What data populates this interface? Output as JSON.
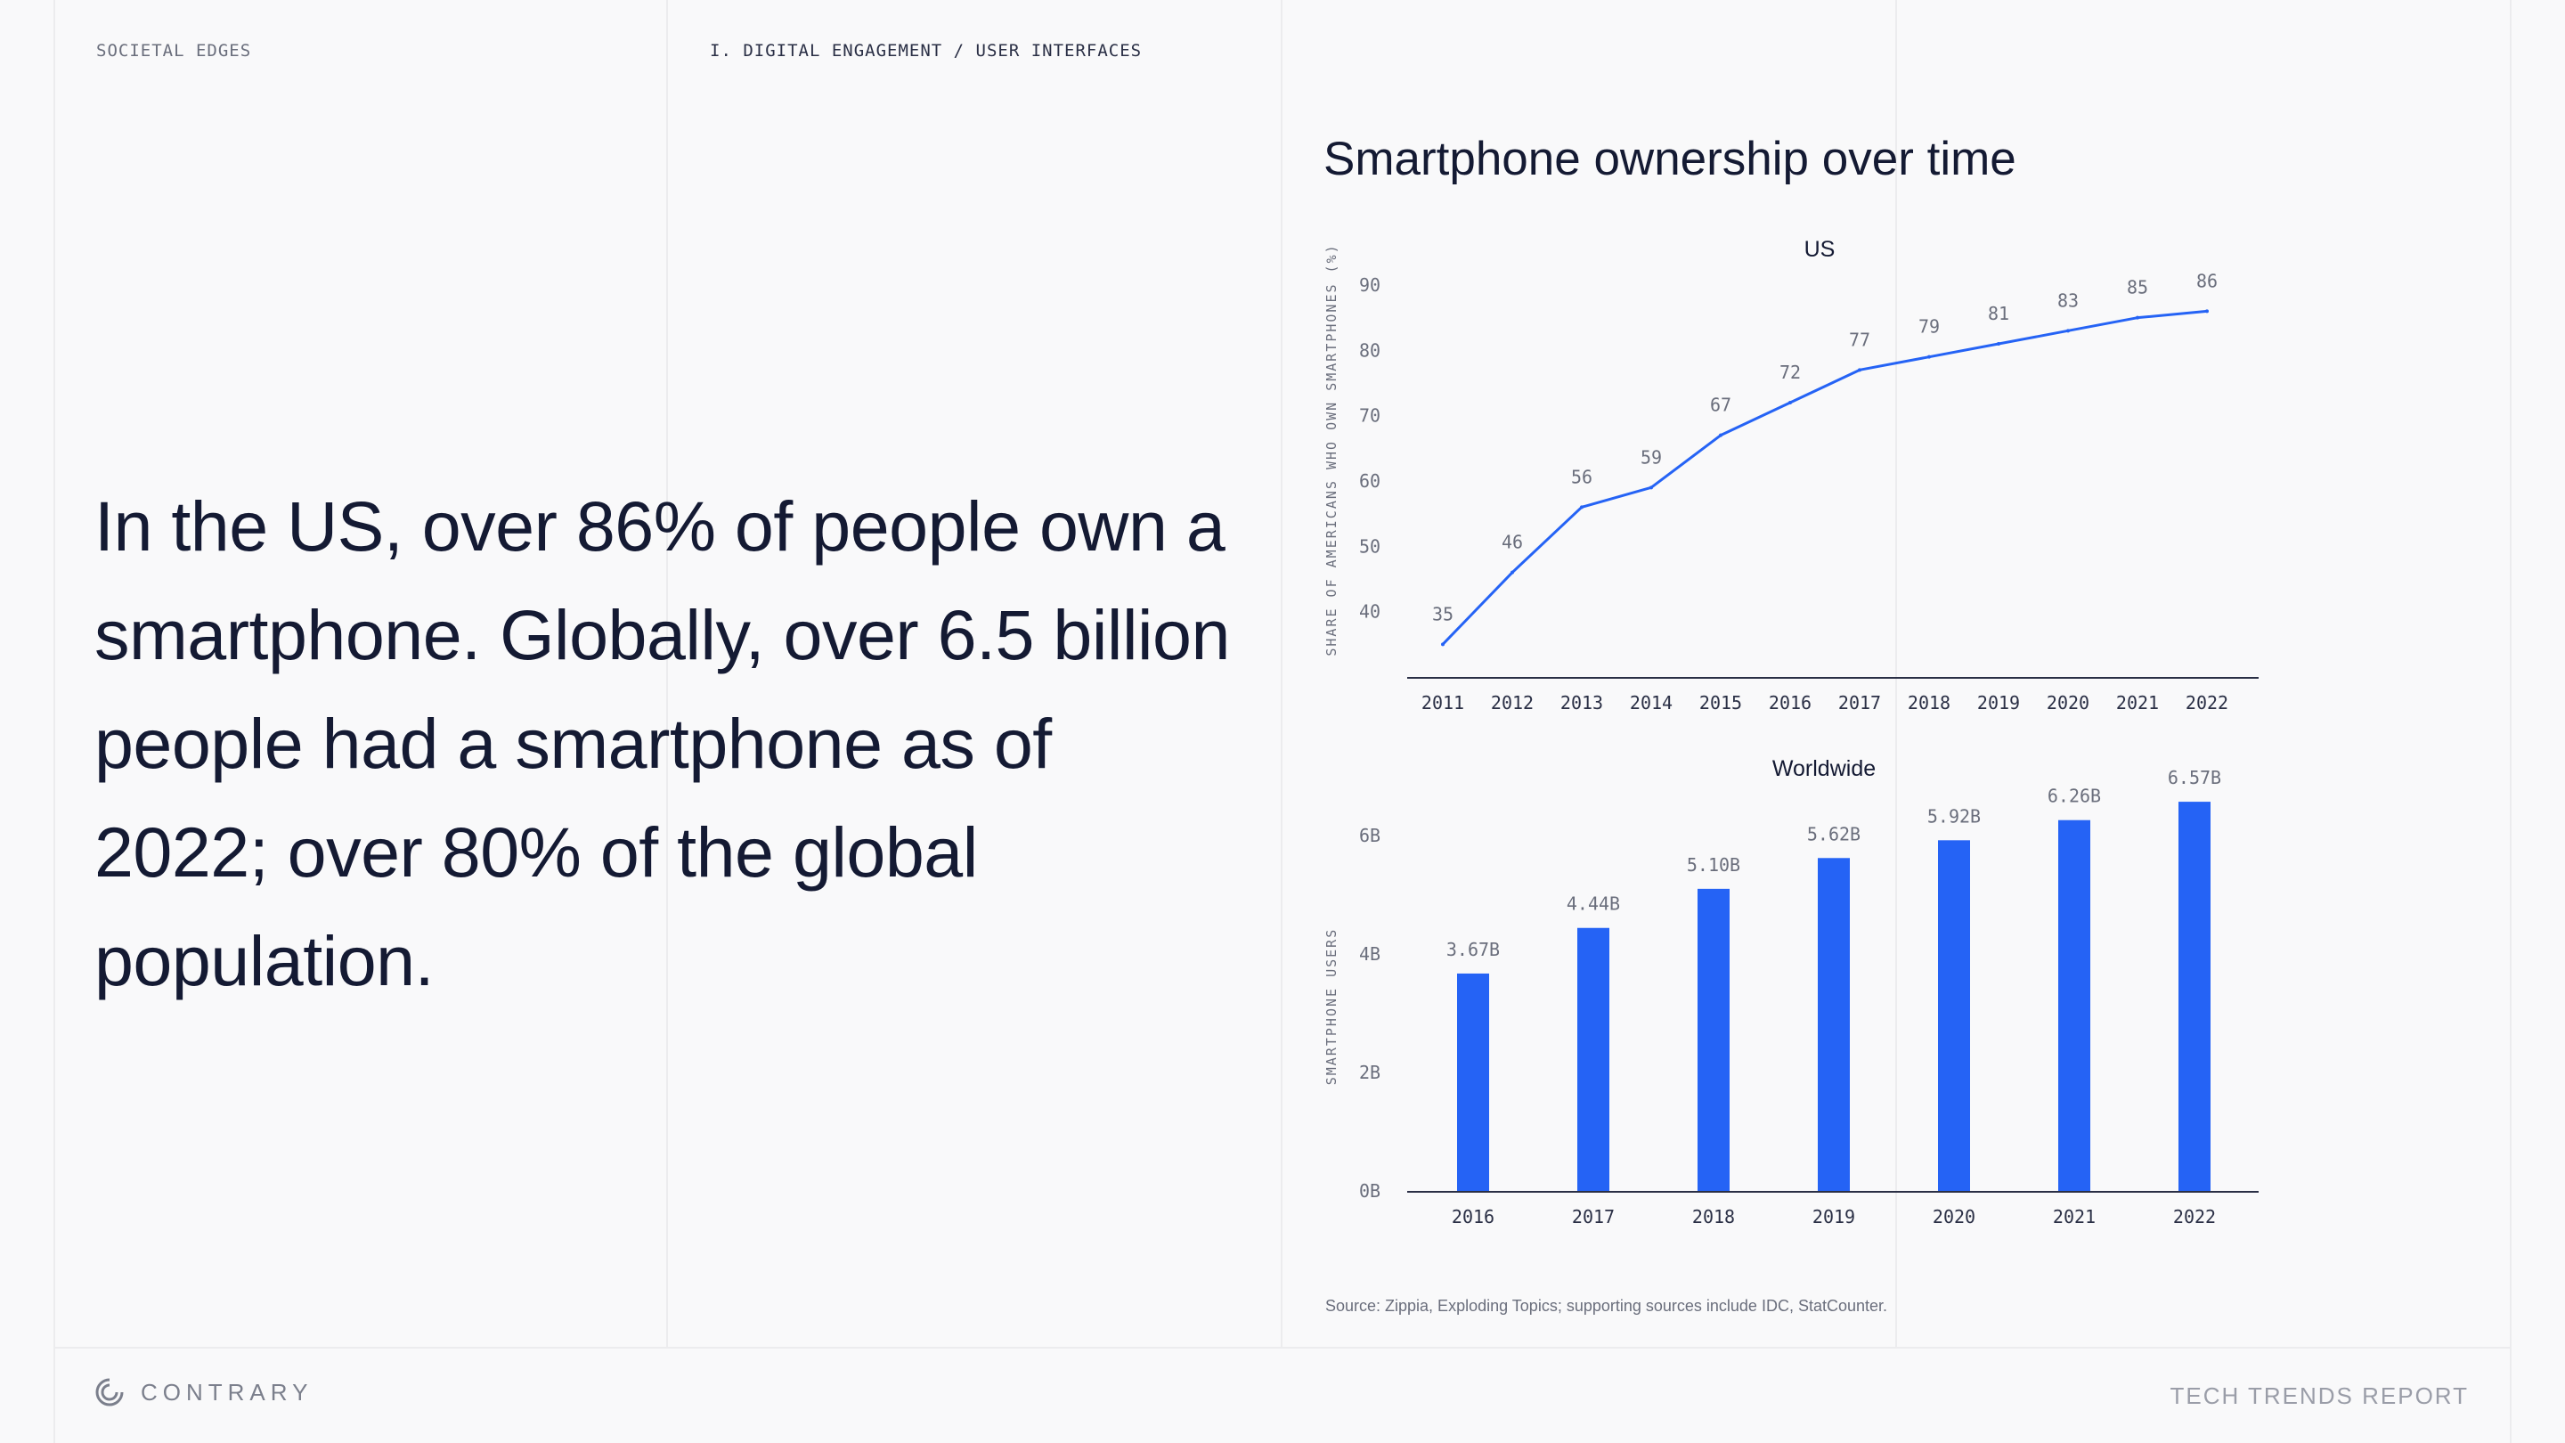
{
  "header": {
    "section_label": "SOCIETAL EDGES",
    "breadcrumb": "I. DIGITAL ENGAGEMENT / USER INTERFACES"
  },
  "headline": "In the US, over 86% of people own a smartphone. Globally, over 6.5 billion people had a smartphone as of 2022; over 80% of the global population.",
  "chart_heading": "Smartphone ownership over time",
  "source_note": "Source: Zippia, Exploding Topics; supporting sources include IDC, StatCounter.",
  "footer": {
    "brand": "CONTRARY",
    "report": "TECH TRENDS REPORT"
  },
  "colors": {
    "accent": "#2563f5",
    "text": "#141a33",
    "muted": "#6a6e7c"
  },
  "chart_data": [
    {
      "type": "line",
      "title": "US",
      "ylabel": "SHARE OF AMERICANS WHO OWN SMARTPHONES (%)",
      "x": [
        "2011",
        "2012",
        "2013",
        "2014",
        "2015",
        "2016",
        "2017",
        "2018",
        "2019",
        "2020",
        "2021",
        "2022"
      ],
      "values": [
        35,
        46,
        56,
        59,
        67,
        72,
        77,
        79,
        81,
        83,
        85,
        86
      ],
      "data_labels": [
        "35",
        "46",
        "56",
        "59",
        "67",
        "72",
        "77",
        "79",
        "81",
        "83",
        "85",
        "86"
      ],
      "yticks": [
        "40",
        "50",
        "60",
        "70",
        "80",
        "90"
      ],
      "ylim": [
        30,
        90
      ],
      "grid": false
    },
    {
      "type": "bar",
      "title": "Worldwide",
      "ylabel": "SMARTPHONE USERS",
      "categories": [
        "2016",
        "2017",
        "2018",
        "2019",
        "2020",
        "2021",
        "2022"
      ],
      "values": [
        3.67,
        4.44,
        5.1,
        5.62,
        5.92,
        6.26,
        6.57
      ],
      "data_labels": [
        "3.67B",
        "4.44B",
        "5.10B",
        "5.62B",
        "5.92B",
        "6.26B",
        "6.57B"
      ],
      "yticks": [
        "0B",
        "2B",
        "4B",
        "6B"
      ],
      "ylim": [
        0,
        7
      ],
      "grid": false
    }
  ]
}
